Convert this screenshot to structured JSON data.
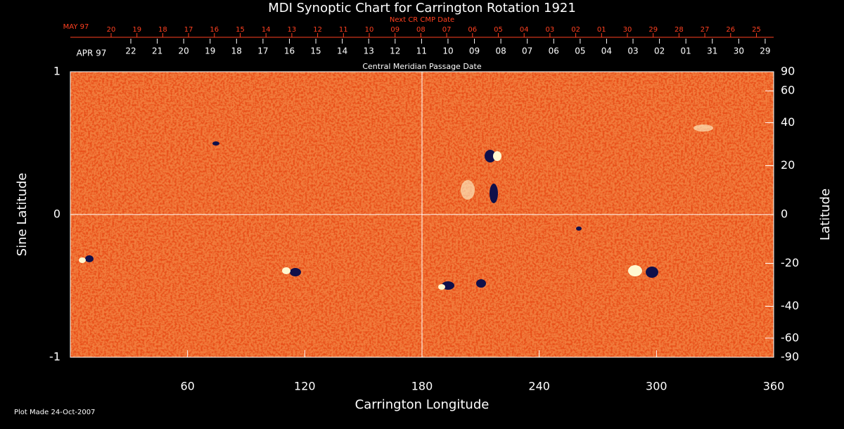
{
  "chart_data": {
    "type": "image",
    "title": "MDI Synoptic Chart for Carrington Rotation 1921",
    "xlabel": "Carrington Longitude",
    "ylabel": "Sine Latitude",
    "y2label": "Latitude",
    "xlim": [
      0,
      360
    ],
    "xticks": [
      60,
      120,
      180,
      240,
      300,
      360
    ],
    "ylim": [
      -1,
      1
    ],
    "yticks": [
      -1,
      0,
      1
    ],
    "y2ticks": [
      90,
      60,
      40,
      20,
      0,
      -20,
      -40,
      -60,
      -90
    ],
    "next_cmp": {
      "label": "Next CR CMP Date",
      "start": "MAY 97",
      "dates": [
        "20",
        "19",
        "18",
        "17",
        "16",
        "15",
        "14",
        "13",
        "12",
        "11",
        "10",
        "09",
        "08",
        "07",
        "06",
        "05",
        "04",
        "03",
        "02",
        "01",
        "30",
        "29",
        "28",
        "27",
        "26",
        "25"
      ]
    },
    "cmp": {
      "label": "Central Meridian Passage Date",
      "start": "APR 97",
      "dates": [
        "22",
        "21",
        "20",
        "19",
        "18",
        "17",
        "16",
        "15",
        "14",
        "13",
        "12",
        "11",
        "10",
        "09",
        "08",
        "07",
        "06",
        "05",
        "04",
        "03",
        "02",
        "01",
        "31",
        "30",
        "29"
      ]
    },
    "footnote": "Plot Made 24-Oct-2007"
  }
}
